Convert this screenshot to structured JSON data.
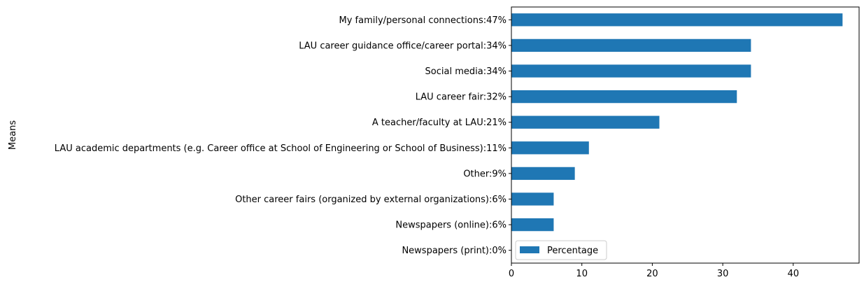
{
  "chart_data": {
    "type": "bar",
    "orientation": "horizontal",
    "ylabel": "Means",
    "categories": [
      "Newspapers (print):0%",
      "Newspapers (online):6%",
      "Other career fairs (organized by external organizations):6%",
      "Other:9%",
      "LAU academic departments (e.g. Career office at School of Engineering or School of Business):11%",
      "A teacher/faculty at LAU:21%",
      "LAU career fair:32%",
      "Social media:34%",
      "LAU career guidance office/career portal:34%",
      "My family/personal connections:47%"
    ],
    "series": [
      {
        "name": "Percentage",
        "values": [
          0,
          6,
          6,
          9,
          11,
          21,
          32,
          34,
          34,
          47
        ],
        "color": "#1f77b4"
      }
    ],
    "xlim": [
      0,
      49.35
    ],
    "xticks": [
      "0",
      "10",
      "20",
      "30",
      "40"
    ],
    "grid": false,
    "legend_position": "lower-left"
  }
}
